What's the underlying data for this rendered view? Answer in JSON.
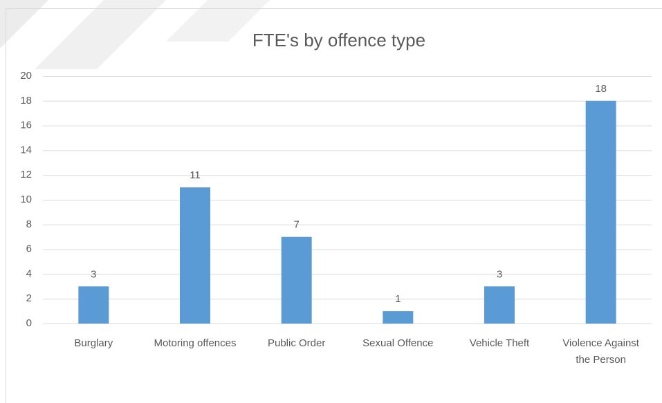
{
  "chart_data": {
    "type": "bar",
    "title": "FTE's by offence type",
    "categories": [
      "Burglary",
      "Motoring offences",
      "Public Order",
      "Sexual Offence",
      "Vehicle Theft",
      "Violence Against the Person"
    ],
    "values": [
      3,
      11,
      7,
      1,
      3,
      18
    ],
    "color": "#5b9bd5",
    "ylim": [
      0,
      20
    ],
    "yticks": [
      0,
      2,
      4,
      6,
      8,
      10,
      12,
      14,
      16,
      18,
      20
    ],
    "grid": true
  }
}
